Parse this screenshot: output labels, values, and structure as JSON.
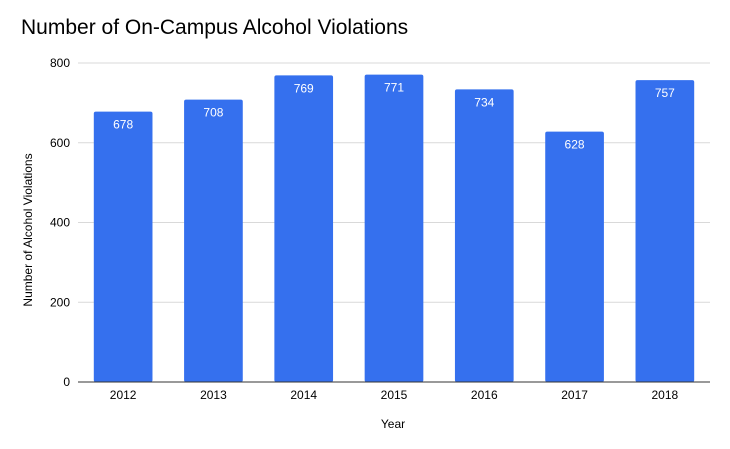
{
  "chart_data": {
    "type": "bar",
    "title": "Number of On-Campus Alcohol Violations",
    "xlabel": "Year",
    "ylabel": "Number of Alcohol Violations",
    "categories": [
      "2012",
      "2013",
      "2014",
      "2015",
      "2016",
      "2017",
      "2018"
    ],
    "series": [
      {
        "values": [
          678,
          708,
          769,
          771,
          734,
          628,
          757
        ]
      }
    ],
    "ylim": [
      0,
      800
    ],
    "yticks": [
      0,
      200,
      400,
      600,
      800
    ],
    "grid": true,
    "legend": "none",
    "bar_color": "#3570ee",
    "grid_color": "#d9d9d9",
    "data_labels": true
  }
}
